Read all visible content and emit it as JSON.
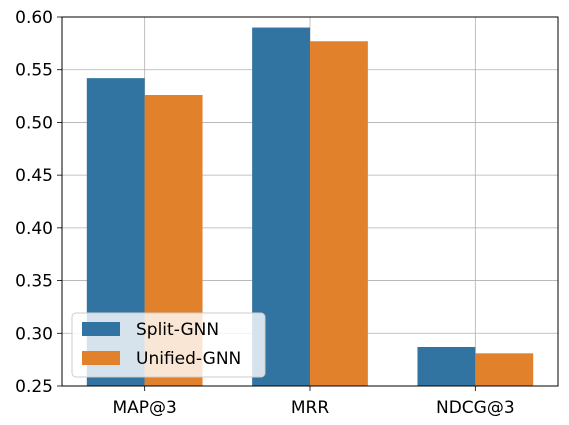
{
  "chart_data": {
    "type": "bar",
    "categories": [
      "MAP@3",
      "MRR",
      "NDCG@3"
    ],
    "series": [
      {
        "name": "Split-GNN",
        "color": "#3274a1",
        "values": [
          0.542,
          0.59,
          0.287
        ]
      },
      {
        "name": "Unified-GNN",
        "color": "#e1812c",
        "values": [
          0.526,
          0.577,
          0.281
        ]
      }
    ],
    "ylim": [
      0.25,
      0.6
    ],
    "yticks": [
      "0.25",
      "0.30",
      "0.35",
      "0.40",
      "0.45",
      "0.50",
      "0.55",
      "0.60"
    ],
    "grid": true,
    "legend_position": "lower-left"
  }
}
